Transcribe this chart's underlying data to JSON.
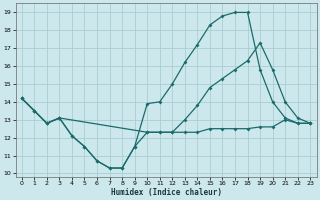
{
  "xlabel": "Humidex (Indice chaleur)",
  "bg_color": "#cde8ec",
  "grid_color": "#aacdd4",
  "line_color": "#1a6b6b",
  "xlim": [
    -0.5,
    23.5
  ],
  "ylim": [
    9.8,
    19.5
  ],
  "xticks": [
    0,
    1,
    2,
    3,
    4,
    5,
    6,
    7,
    8,
    9,
    10,
    11,
    12,
    13,
    14,
    15,
    16,
    17,
    18,
    19,
    20,
    21,
    22,
    23
  ],
  "yticks": [
    10,
    11,
    12,
    13,
    14,
    15,
    16,
    17,
    18,
    19
  ],
  "series1_x": [
    0,
    1,
    2,
    3,
    4,
    5,
    6,
    7,
    8,
    9,
    10,
    11,
    12,
    13,
    14,
    15,
    16,
    17,
    18,
    19,
    20,
    21,
    22,
    23
  ],
  "series1_y": [
    14.2,
    13.5,
    12.8,
    13.1,
    12.1,
    11.5,
    10.7,
    10.3,
    10.3,
    11.5,
    12.3,
    12.3,
    12.3,
    12.3,
    12.3,
    12.5,
    12.5,
    12.5,
    12.5,
    12.6,
    12.6,
    13.0,
    12.8,
    12.8
  ],
  "series2_x": [
    0,
    1,
    2,
    3,
    4,
    5,
    6,
    7,
    8,
    9,
    10,
    11,
    12,
    13,
    14,
    15,
    16,
    17,
    18,
    19,
    20,
    21,
    22,
    23
  ],
  "series2_y": [
    14.2,
    13.5,
    12.8,
    13.1,
    12.1,
    11.5,
    10.7,
    10.3,
    10.3,
    11.5,
    13.9,
    14.0,
    15.0,
    16.2,
    17.2,
    18.3,
    18.8,
    19.0,
    19.0,
    15.8,
    14.0,
    13.1,
    12.8,
    12.8
  ],
  "series3_x": [
    0,
    1,
    2,
    3,
    10,
    11,
    12,
    13,
    14,
    15,
    16,
    17,
    18,
    19,
    20,
    21,
    22,
    23
  ],
  "series3_y": [
    14.2,
    13.5,
    12.8,
    13.1,
    12.3,
    12.3,
    12.3,
    13.0,
    13.8,
    14.8,
    15.3,
    15.8,
    16.3,
    17.3,
    15.8,
    14.0,
    13.1,
    12.8
  ]
}
